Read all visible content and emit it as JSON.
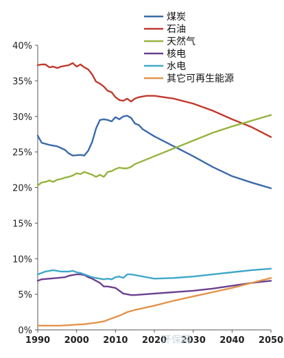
{
  "chart_data": {
    "type": "line",
    "xlim": [
      1990,
      2050
    ],
    "ylim": [
      0,
      40
    ],
    "x_ticks": [
      1990,
      2000,
      2010,
      2020,
      2030,
      2040,
      2050
    ],
    "y_ticks": [
      "0%",
      "5%",
      "10%",
      "15%",
      "20%",
      "25%",
      "30%",
      "35%",
      "40%"
    ],
    "grid": false,
    "legend_position": "top-center",
    "series": [
      {
        "name": "煤炭",
        "color": "#3a6aa8",
        "points": [
          [
            1990,
            27.3
          ],
          [
            1991,
            26.3
          ],
          [
            1993,
            26.0
          ],
          [
            1995,
            25.8
          ],
          [
            1997,
            25.3
          ],
          [
            1998,
            24.8
          ],
          [
            1999,
            24.5
          ],
          [
            2001,
            24.6
          ],
          [
            2002,
            24.5
          ],
          [
            2003,
            25.2
          ],
          [
            2004,
            26.4
          ],
          [
            2005,
            28.3
          ],
          [
            2006,
            29.5
          ],
          [
            2007,
            29.6
          ],
          [
            2008,
            29.5
          ],
          [
            2009,
            29.3
          ],
          [
            2010,
            29.9
          ],
          [
            2011,
            29.6
          ],
          [
            2012,
            30.0
          ],
          [
            2013,
            30.1
          ],
          [
            2014,
            29.8
          ],
          [
            2015,
            29.0
          ],
          [
            2016,
            28.8
          ],
          [
            2017,
            28.2
          ],
          [
            2020,
            27.2
          ],
          [
            2025,
            25.8
          ],
          [
            2030,
            24.4
          ],
          [
            2035,
            22.9
          ],
          [
            2040,
            21.6
          ],
          [
            2045,
            20.7
          ],
          [
            2050,
            19.9
          ]
        ]
      },
      {
        "name": "石油",
        "color": "#c0392b",
        "points": [
          [
            1990,
            37.2
          ],
          [
            1991,
            37.3
          ],
          [
            1992,
            37.3
          ],
          [
            1993,
            36.9
          ],
          [
            1994,
            37.0
          ],
          [
            1995,
            36.8
          ],
          [
            1996,
            37.0
          ],
          [
            1998,
            37.2
          ],
          [
            1999,
            37.5
          ],
          [
            2000,
            37.0
          ],
          [
            2001,
            37.3
          ],
          [
            2002,
            36.9
          ],
          [
            2003,
            36.6
          ],
          [
            2004,
            35.9
          ],
          [
            2005,
            34.9
          ],
          [
            2006,
            34.6
          ],
          [
            2007,
            34.2
          ],
          [
            2008,
            33.6
          ],
          [
            2009,
            33.4
          ],
          [
            2010,
            32.7
          ],
          [
            2011,
            32.3
          ],
          [
            2012,
            32.2
          ],
          [
            2013,
            32.5
          ],
          [
            2014,
            32.1
          ],
          [
            2015,
            32.5
          ],
          [
            2016,
            32.7
          ],
          [
            2018,
            32.9
          ],
          [
            2020,
            32.9
          ],
          [
            2025,
            32.5
          ],
          [
            2030,
            31.8
          ],
          [
            2035,
            30.8
          ],
          [
            2040,
            29.6
          ],
          [
            2045,
            28.5
          ],
          [
            2050,
            27.1
          ]
        ]
      },
      {
        "name": "天然气",
        "color": "#95b33c",
        "points": [
          [
            1990,
            20.3
          ],
          [
            1991,
            20.7
          ],
          [
            1992,
            20.8
          ],
          [
            1993,
            21.0
          ],
          [
            1994,
            20.8
          ],
          [
            1995,
            21.1
          ],
          [
            1996,
            21.2
          ],
          [
            1997,
            21.4
          ],
          [
            1998,
            21.5
          ],
          [
            1999,
            21.7
          ],
          [
            2000,
            22.0
          ],
          [
            2001,
            21.9
          ],
          [
            2002,
            22.2
          ],
          [
            2003,
            22.0
          ],
          [
            2004,
            21.8
          ],
          [
            2005,
            21.5
          ],
          [
            2006,
            21.8
          ],
          [
            2007,
            21.5
          ],
          [
            2008,
            22.2
          ],
          [
            2009,
            22.3
          ],
          [
            2010,
            22.6
          ],
          [
            2011,
            22.8
          ],
          [
            2012,
            22.7
          ],
          [
            2013,
            22.7
          ],
          [
            2014,
            22.9
          ],
          [
            2015,
            23.3
          ],
          [
            2020,
            24.4
          ],
          [
            2025,
            25.5
          ],
          [
            2030,
            26.6
          ],
          [
            2035,
            27.7
          ],
          [
            2040,
            28.6
          ],
          [
            2045,
            29.4
          ],
          [
            2050,
            30.2
          ]
        ]
      },
      {
        "name": "核电",
        "color": "#6b3f8f",
        "points": [
          [
            1990,
            6.9
          ],
          [
            1991,
            7.1
          ],
          [
            1993,
            7.2
          ],
          [
            1995,
            7.3
          ],
          [
            1997,
            7.4
          ],
          [
            1998,
            7.6
          ],
          [
            1999,
            7.7
          ],
          [
            2000,
            7.8
          ],
          [
            2001,
            7.8
          ],
          [
            2002,
            7.7
          ],
          [
            2003,
            7.4
          ],
          [
            2004,
            7.2
          ],
          [
            2005,
            6.9
          ],
          [
            2006,
            6.6
          ],
          [
            2007,
            6.1
          ],
          [
            2008,
            6.1
          ],
          [
            2009,
            6.0
          ],
          [
            2010,
            5.9
          ],
          [
            2011,
            5.5
          ],
          [
            2012,
            5.1
          ],
          [
            2013,
            5.0
          ],
          [
            2014,
            4.9
          ],
          [
            2015,
            4.9
          ],
          [
            2020,
            5.1
          ],
          [
            2025,
            5.3
          ],
          [
            2030,
            5.5
          ],
          [
            2035,
            5.8
          ],
          [
            2040,
            6.2
          ],
          [
            2045,
            6.6
          ],
          [
            2050,
            6.9
          ]
        ]
      },
      {
        "name": "水电",
        "color": "#3fa7c9",
        "points": [
          [
            1990,
            7.8
          ],
          [
            1991,
            8.0
          ],
          [
            1992,
            8.2
          ],
          [
            1993,
            8.3
          ],
          [
            1994,
            8.4
          ],
          [
            1995,
            8.3
          ],
          [
            1996,
            8.2
          ],
          [
            1997,
            8.2
          ],
          [
            1998,
            8.2
          ],
          [
            1999,
            8.3
          ],
          [
            2000,
            8.1
          ],
          [
            2001,
            8.0
          ],
          [
            2002,
            7.8
          ],
          [
            2003,
            7.6
          ],
          [
            2004,
            7.4
          ],
          [
            2005,
            7.3
          ],
          [
            2006,
            7.2
          ],
          [
            2007,
            7.1
          ],
          [
            2008,
            7.2
          ],
          [
            2009,
            7.1
          ],
          [
            2010,
            7.4
          ],
          [
            2011,
            7.5
          ],
          [
            2012,
            7.3
          ],
          [
            2013,
            7.8
          ],
          [
            2014,
            7.8
          ],
          [
            2015,
            7.7
          ],
          [
            2020,
            7.2
          ],
          [
            2025,
            7.3
          ],
          [
            2030,
            7.5
          ],
          [
            2035,
            7.8
          ],
          [
            2040,
            8.1
          ],
          [
            2045,
            8.4
          ],
          [
            2050,
            8.6
          ]
        ]
      },
      {
        "name": "其它可再生能源",
        "color": "#e3934a",
        "points": [
          [
            1990,
            0.6
          ],
          [
            1993,
            0.6
          ],
          [
            1996,
            0.6
          ],
          [
            1999,
            0.7
          ],
          [
            2002,
            0.8
          ],
          [
            2005,
            1.0
          ],
          [
            2007,
            1.2
          ],
          [
            2009,
            1.6
          ],
          [
            2011,
            2.0
          ],
          [
            2013,
            2.5
          ],
          [
            2015,
            2.8
          ],
          [
            2020,
            3.4
          ],
          [
            2025,
            4.1
          ],
          [
            2030,
            4.7
          ],
          [
            2035,
            5.3
          ],
          [
            2040,
            5.9
          ],
          [
            2045,
            6.6
          ],
          [
            2050,
            7.3
          ]
        ]
      }
    ]
  },
  "watermark": "环保网"
}
